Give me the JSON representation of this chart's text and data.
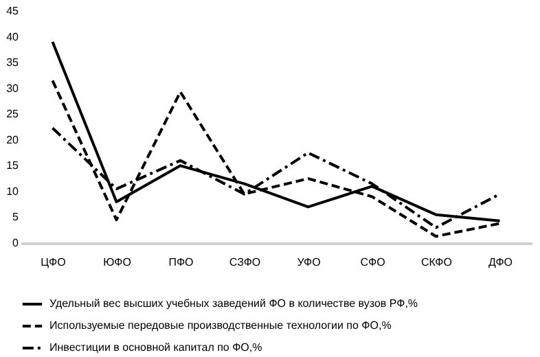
{
  "chart_data": {
    "type": "line",
    "categories": [
      "ЦФО",
      "ЮФО",
      "ПФО",
      "СЗФО",
      "УФО",
      "СФО",
      "СКФО",
      "ДФО"
    ],
    "series": [
      {
        "name": "Удельный  вес высших учебных заведений ФО в количестве вузов РФ,%",
        "color": "#000000",
        "line_style": "solid",
        "values": [
          39,
          8,
          15,
          11.5,
          7,
          11,
          5.5,
          4.3
        ]
      },
      {
        "name": "Используемые передовые производственные технологии по ФО,%",
        "color": "#000000",
        "line_style": "dashed",
        "values": [
          31.5,
          4.5,
          29.3,
          9.5,
          12.5,
          9,
          1.3,
          3.8
        ]
      },
      {
        "name": "Инвестиции в основной капитал  по ФО,%",
        "color": "#000000",
        "line_style": "dashdot",
        "values": [
          22.3,
          10.5,
          16,
          9.5,
          17.5,
          11.5,
          3,
          9.5
        ]
      }
    ],
    "ylim": [
      0,
      45
    ],
    "yticks": [
      0,
      5,
      10,
      15,
      20,
      25,
      30,
      35,
      40,
      45
    ],
    "grid": false,
    "legend": "bottom",
    "marker": "none"
  }
}
